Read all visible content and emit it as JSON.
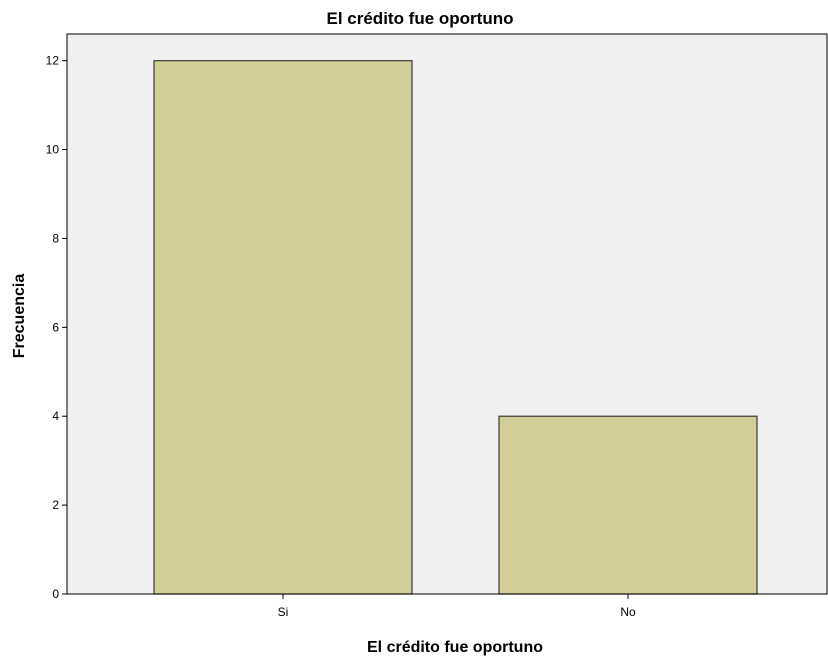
{
  "chart_data": {
    "type": "bar",
    "title": "El crédito fue oportuno",
    "xlabel": "El crédito fue oportuno",
    "ylabel": "Frecuencia",
    "categories": [
      "Si",
      "No"
    ],
    "values": [
      12,
      4
    ],
    "ylim": [
      0,
      12.6
    ],
    "yticks": [
      "0",
      "2",
      "4",
      "6",
      "8",
      "10",
      "12"
    ],
    "grid": false,
    "legend": "none",
    "colors": {
      "bar_fill": "#d3ce97",
      "bar_stroke": "#3a3a3a",
      "plot_background": "#f0f0f0",
      "axis": "#000000"
    }
  }
}
